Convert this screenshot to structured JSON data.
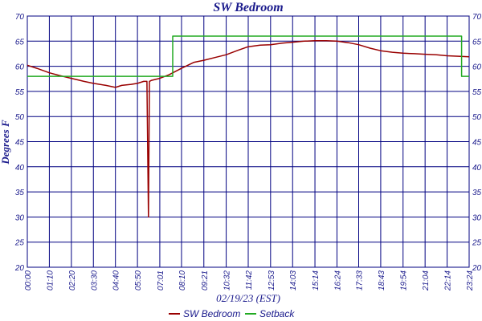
{
  "chart_data": {
    "type": "line",
    "title": "SW Bedroom",
    "xlabel": "02/19/23 (EST)",
    "ylabel": "Degrees F",
    "ylim": [
      20,
      70
    ],
    "yticks": [
      20,
      25,
      30,
      35,
      40,
      45,
      50,
      55,
      60,
      65,
      70
    ],
    "x_tick_labels": [
      "00:00",
      "01:10",
      "02:20",
      "03:30",
      "04:40",
      "05:50",
      "07:01",
      "08:10",
      "09:21",
      "10:32",
      "11:42",
      "12:53",
      "14:03",
      "15:14",
      "16:24",
      "17:33",
      "18:43",
      "19:54",
      "21:04",
      "22:14",
      "23:24"
    ],
    "x_tick_minutes": [
      0,
      70,
      140,
      210,
      280,
      350,
      421,
      490,
      561,
      632,
      702,
      773,
      843,
      914,
      984,
      1053,
      1123,
      1194,
      1264,
      1334,
      1404
    ],
    "xlim_minutes": [
      0,
      1404
    ],
    "grid": true,
    "legend_position": "bottom",
    "series": [
      {
        "name": "SW Bedroom",
        "color": "#990000",
        "points": [
          [
            0,
            60.2
          ],
          [
            30,
            59.6
          ],
          [
            70,
            58.7
          ],
          [
            100,
            58.2
          ],
          [
            140,
            57.6
          ],
          [
            180,
            57.0
          ],
          [
            210,
            56.6
          ],
          [
            250,
            56.2
          ],
          [
            280,
            55.8
          ],
          [
            300,
            56.2
          ],
          [
            330,
            56.4
          ],
          [
            350,
            56.6
          ],
          [
            370,
            57.0
          ],
          [
            380,
            57.0
          ],
          [
            385,
            30.0
          ],
          [
            388,
            57.0
          ],
          [
            395,
            57.2
          ],
          [
            421,
            57.6
          ],
          [
            450,
            58.3
          ],
          [
            490,
            59.6
          ],
          [
            530,
            60.8
          ],
          [
            561,
            61.2
          ],
          [
            600,
            61.8
          ],
          [
            632,
            62.3
          ],
          [
            670,
            63.2
          ],
          [
            702,
            63.9
          ],
          [
            740,
            64.2
          ],
          [
            773,
            64.3
          ],
          [
            810,
            64.6
          ],
          [
            843,
            64.8
          ],
          [
            880,
            65.0
          ],
          [
            914,
            65.1
          ],
          [
            950,
            65.1
          ],
          [
            984,
            65.0
          ],
          [
            1020,
            64.7
          ],
          [
            1053,
            64.3
          ],
          [
            1090,
            63.6
          ],
          [
            1123,
            63.1
          ],
          [
            1160,
            62.8
          ],
          [
            1194,
            62.6
          ],
          [
            1230,
            62.5
          ],
          [
            1264,
            62.4
          ],
          [
            1300,
            62.3
          ],
          [
            1334,
            62.1
          ],
          [
            1370,
            62.0
          ],
          [
            1404,
            61.9
          ]
        ]
      },
      {
        "name": "Setback",
        "color": "#22aa22",
        "points": [
          [
            0,
            58
          ],
          [
            462,
            58
          ],
          [
            462,
            66
          ],
          [
            1380,
            66
          ],
          [
            1380,
            58
          ],
          [
            1404,
            58
          ]
        ]
      }
    ]
  }
}
